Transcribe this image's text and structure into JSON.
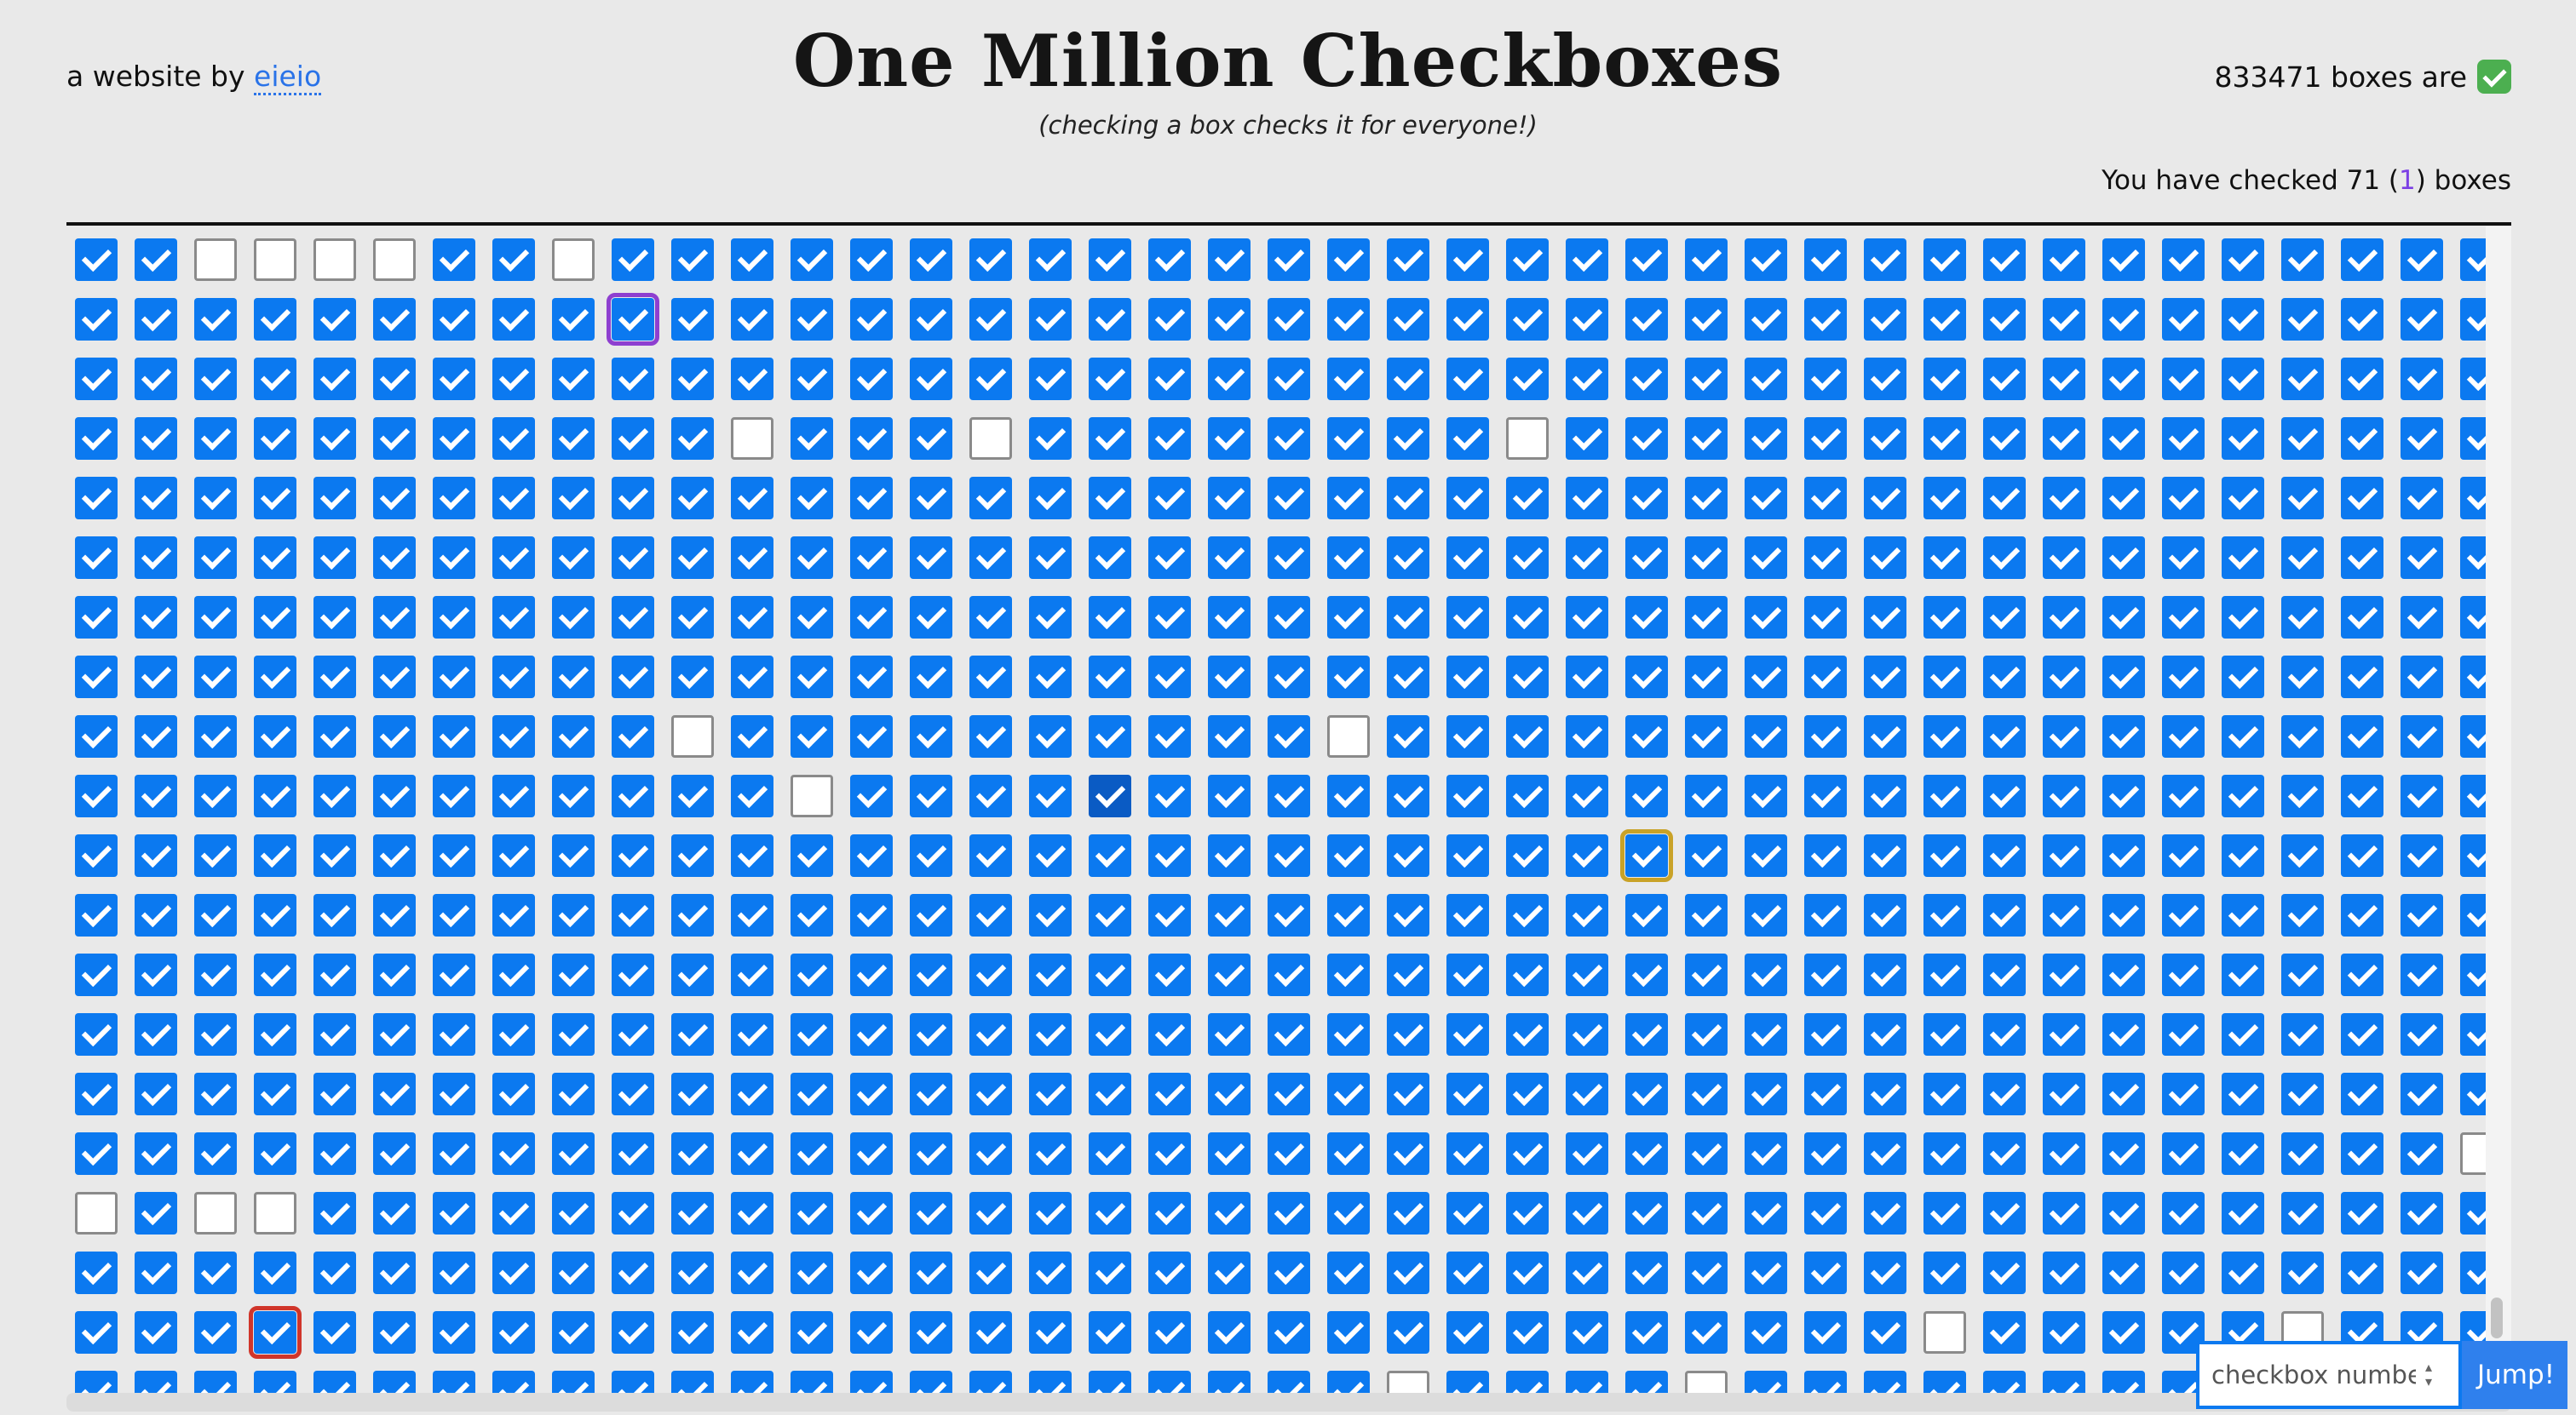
{
  "header": {
    "byline_prefix": "a website by ",
    "byline_link": "eieio",
    "title": "One Million Checkboxes",
    "subtitle": "(checking a box checks it for everyone!)",
    "count_text": "833471 boxes are",
    "count_icon": "green-checkmark-emoji",
    "you_checked_prefix": "You have checked 71 (",
    "you_checked_session": "1",
    "you_checked_suffix": ") boxes"
  },
  "grid": {
    "columns": 41,
    "rows": 20,
    "checked_color": "#0b79f0",
    "unchecked": [
      [
        0,
        2
      ],
      [
        0,
        3
      ],
      [
        0,
        4
      ],
      [
        0,
        5
      ],
      [
        0,
        8
      ],
      [
        3,
        11
      ],
      [
        3,
        15
      ],
      [
        3,
        24
      ],
      [
        8,
        10
      ],
      [
        8,
        21
      ],
      [
        9,
        12
      ],
      [
        16,
        0
      ],
      [
        16,
        2
      ],
      [
        16,
        3
      ],
      [
        18,
        31
      ],
      [
        18,
        37
      ],
      [
        19,
        22
      ],
      [
        19,
        27
      ]
    ],
    "partial_unchecked": [
      [
        15,
        40
      ]
    ],
    "dark": [
      [
        9,
        17
      ]
    ],
    "highlights": [
      {
        "row": 1,
        "col": 9,
        "color": "#8e3fd0"
      },
      {
        "row": 10,
        "col": 26,
        "color": "#c9a227"
      },
      {
        "row": 18,
        "col": 3,
        "color": "#d0352a"
      }
    ]
  },
  "jump": {
    "placeholder": "checkbox number",
    "button_label": "Jump!"
  }
}
